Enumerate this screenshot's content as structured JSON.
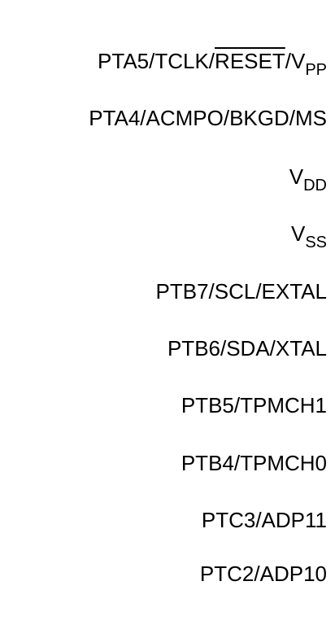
{
  "pins": {
    "pta5": {
      "prefix": "PTA5/TCLK/",
      "reset": "RESET",
      "mid": "/V",
      "sub": "PP"
    },
    "pta4": "PTA4/ACMPO/BKGD/MS",
    "vdd": {
      "main": "V",
      "sub": "DD"
    },
    "vss": {
      "main": "V",
      "sub": "SS"
    },
    "ptb7": "PTB7/SCL/EXTAL",
    "ptb6": "PTB6/SDA/XTAL",
    "ptb5": "PTB5/TPMCH1",
    "ptb4": "PTB4/TPMCH0",
    "ptc3": "PTC3/ADP11",
    "ptc2": "PTC2/ADP10"
  }
}
